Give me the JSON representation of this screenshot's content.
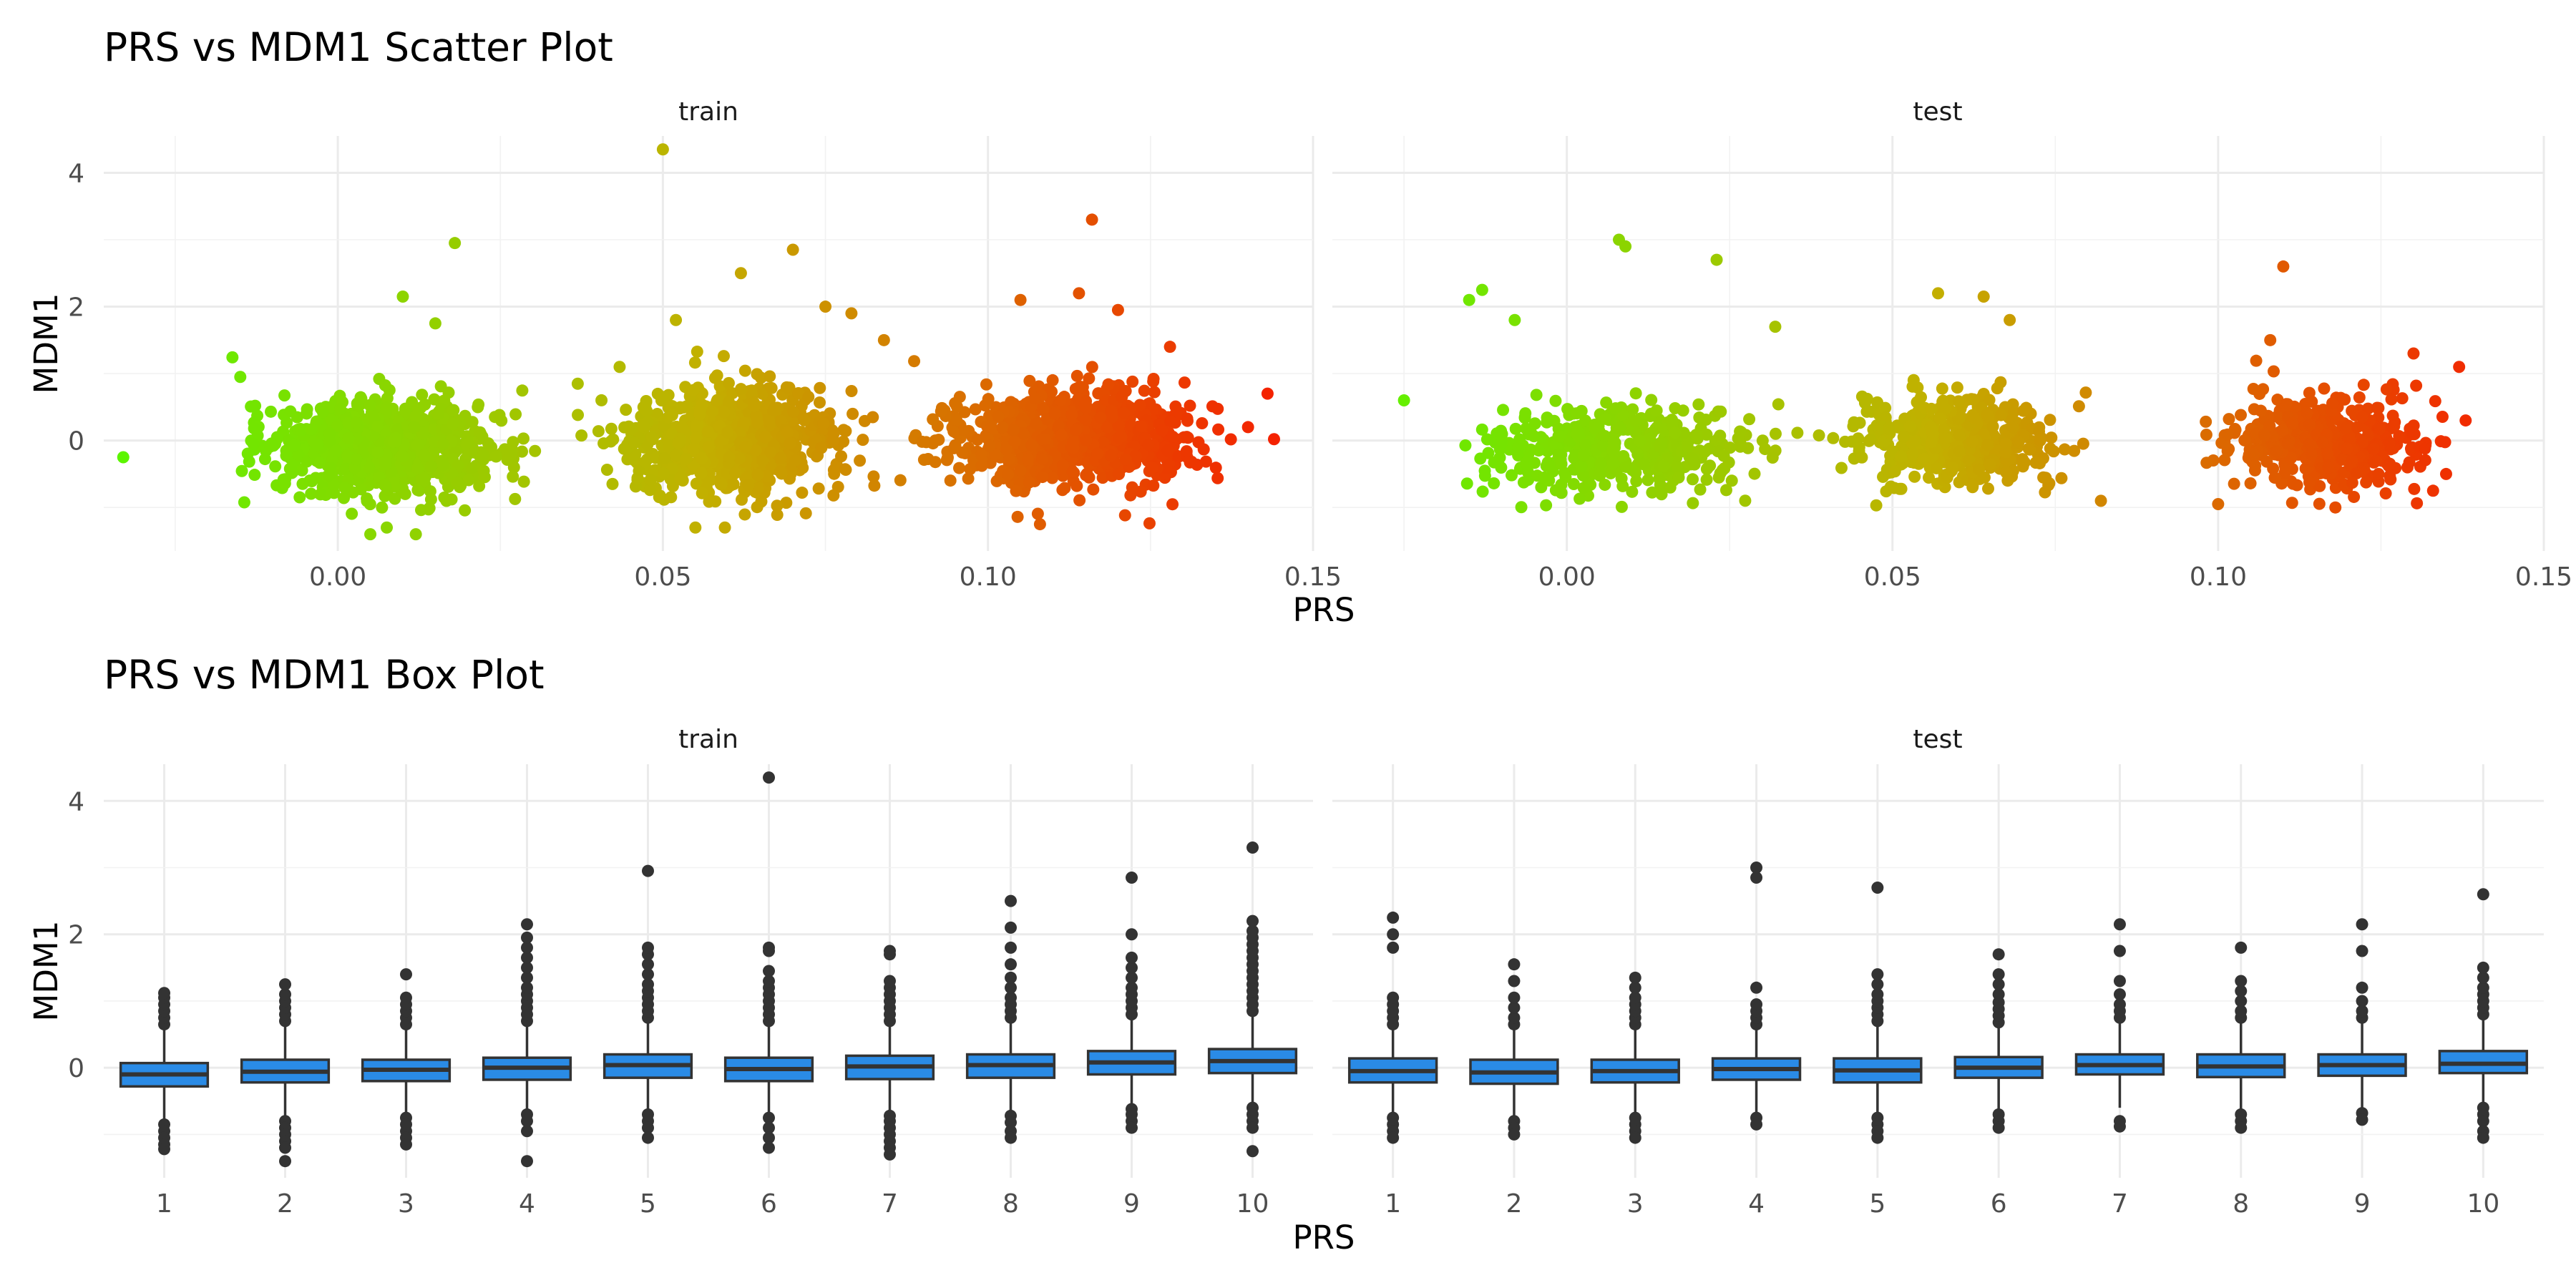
{
  "chart_data": [
    {
      "type": "scatter",
      "title": "PRS vs MDM1 Scatter Plot",
      "xlabel": "PRS",
      "ylabel": "MDM1",
      "xlim": [
        -0.036,
        0.15
      ],
      "ylim": [
        -1.65,
        4.55
      ],
      "x_ticks": [
        0.0,
        0.05,
        0.1,
        0.15
      ],
      "x_tick_labels": [
        "0.00",
        "0.05",
        "0.10",
        "0.15"
      ],
      "y_ticks": [
        0,
        2,
        4
      ],
      "y_tick_labels": [
        "0",
        "2",
        "4"
      ],
      "grid": true,
      "color_scale": {
        "low": "#5CF500",
        "mid": "#C2B000",
        "high": "#F52000",
        "x_min": -0.033,
        "x_max": 0.145
      },
      "panels": [
        {
          "name": "train",
          "clusters": [
            {
              "x_min": -0.02,
              "x_max": 0.035,
              "y_mean": -0.1,
              "y_sd": 0.36
            },
            {
              "x_min": 0.035,
              "x_max": 0.085,
              "y_mean": 0.0,
              "y_sd": 0.4
            },
            {
              "x_min": 0.085,
              "x_max": 0.14,
              "y_mean": 0.05,
              "y_sd": 0.36
            }
          ],
          "outliers": [
            [
              -0.033,
              -0.25
            ],
            [
              -0.015,
              0.95
            ],
            [
              0.01,
              2.15
            ],
            [
              0.015,
              1.75
            ],
            [
              0.018,
              2.95
            ],
            [
              0.005,
              -1.4
            ],
            [
              0.012,
              -1.4
            ],
            [
              0.05,
              4.35
            ],
            [
              0.052,
              1.8
            ],
            [
              0.062,
              2.5
            ],
            [
              0.07,
              2.85
            ],
            [
              0.075,
              2.0
            ],
            [
              0.079,
              1.9
            ],
            [
              0.084,
              1.5
            ],
            [
              0.055,
              -1.3
            ],
            [
              0.108,
              -1.25
            ],
            [
              0.116,
              3.3
            ],
            [
              0.114,
              2.2
            ],
            [
              0.12,
              1.95
            ],
            [
              0.105,
              2.1
            ],
            [
              0.143,
              0.7
            ],
            [
              0.144,
              0.02
            ],
            [
              0.14,
              0.2
            ],
            [
              0.128,
              1.4
            ]
          ]
        },
        {
          "name": "test",
          "clusters": [
            {
              "x_min": -0.02,
              "x_max": 0.037,
              "y_mean": -0.1,
              "y_sd": 0.32
            },
            {
              "x_min": 0.037,
              "x_max": 0.083,
              "y_mean": 0.0,
              "y_sd": 0.34
            },
            {
              "x_min": 0.095,
              "x_max": 0.138,
              "y_mean": 0.0,
              "y_sd": 0.33
            }
          ],
          "outliers": [
            [
              -0.025,
              0.6
            ],
            [
              -0.013,
              2.25
            ],
            [
              -0.015,
              2.1
            ],
            [
              -0.008,
              1.8
            ],
            [
              0.008,
              3.0
            ],
            [
              0.009,
              2.9
            ],
            [
              0.023,
              2.7
            ],
            [
              0.032,
              1.7
            ],
            [
              0.057,
              2.2
            ],
            [
              0.064,
              2.15
            ],
            [
              0.068,
              1.8
            ],
            [
              0.082,
              -0.9
            ],
            [
              0.11,
              2.6
            ],
            [
              0.108,
              1.5
            ],
            [
              0.13,
              1.3
            ],
            [
              0.137,
              1.1
            ],
            [
              0.138,
              0.3
            ],
            [
              0.135,
              -0.5
            ],
            [
              0.133,
              -0.75
            ],
            [
              0.1,
              -0.95
            ],
            [
              0.118,
              -1.0
            ]
          ]
        }
      ]
    },
    {
      "type": "box",
      "title": "PRS vs MDM1 Box Plot",
      "xlabel": "PRS",
      "ylabel": "MDM1",
      "categories": [
        "1",
        "2",
        "3",
        "4",
        "5",
        "6",
        "7",
        "8",
        "9",
        "10"
      ],
      "ylim": [
        -1.65,
        4.55
      ],
      "y_ticks": [
        0,
        2,
        4
      ],
      "y_tick_labels": [
        "0",
        "2",
        "4"
      ],
      "grid": true,
      "box_fill": "#2A8BE6",
      "panels": [
        {
          "name": "train",
          "boxes": [
            {
              "q1": -0.28,
              "median": -0.1,
              "q3": 0.07,
              "whisker_low": -0.8,
              "whisker_high": 0.58,
              "outliers": [
                -0.85,
                -0.95,
                -1.05,
                -1.15,
                -1.22,
                0.65,
                0.75,
                0.85,
                0.95,
                1.05,
                1.12
              ]
            },
            {
              "q1": -0.22,
              "median": -0.06,
              "q3": 0.12,
              "whisker_low": -0.75,
              "whisker_high": 0.62,
              "outliers": [
                -0.8,
                -0.9,
                -1.0,
                -1.1,
                -1.2,
                -1.4,
                0.7,
                0.8,
                0.9,
                1.0,
                1.1,
                1.25
              ]
            },
            {
              "q1": -0.2,
              "median": -0.03,
              "q3": 0.12,
              "whisker_low": -0.7,
              "whisker_high": 0.6,
              "outliers": [
                -0.75,
                -0.85,
                -0.95,
                -1.05,
                -1.15,
                0.65,
                0.75,
                0.85,
                0.95,
                1.05,
                1.4
              ]
            },
            {
              "q1": -0.18,
              "median": 0.0,
              "q3": 0.15,
              "whisker_low": -0.65,
              "whisker_high": 0.65,
              "outliers": [
                -0.7,
                -0.8,
                -0.95,
                -1.4,
                0.7,
                0.8,
                0.9,
                1.0,
                1.1,
                1.2,
                1.35,
                1.5,
                1.65,
                1.8,
                1.95,
                2.15
              ]
            },
            {
              "q1": -0.15,
              "median": 0.04,
              "q3": 0.2,
              "whisker_low": -0.65,
              "whisker_high": 0.7,
              "outliers": [
                -0.7,
                -0.8,
                -0.9,
                -1.05,
                0.75,
                0.85,
                0.95,
                1.05,
                1.15,
                1.25,
                1.4,
                1.55,
                1.7,
                1.8,
                2.95
              ]
            },
            {
              "q1": -0.2,
              "median": -0.02,
              "q3": 0.15,
              "whisker_low": -0.7,
              "whisker_high": 0.65,
              "outliers": [
                -0.75,
                -0.9,
                -1.05,
                -1.2,
                0.7,
                0.8,
                0.9,
                1.0,
                1.1,
                1.2,
                1.3,
                1.45,
                1.75,
                1.8,
                4.35
              ]
            },
            {
              "q1": -0.17,
              "median": 0.02,
              "q3": 0.18,
              "whisker_low": -0.68,
              "whisker_high": 0.65,
              "outliers": [
                -0.72,
                -0.8,
                -0.9,
                -1.0,
                -1.1,
                -1.2,
                -1.3,
                0.7,
                0.8,
                0.9,
                1.0,
                1.1,
                1.2,
                1.3,
                1.7,
                1.75
              ]
            },
            {
              "q1": -0.15,
              "median": 0.04,
              "q3": 0.2,
              "whisker_low": -0.65,
              "whisker_high": 0.7,
              "outliers": [
                -0.72,
                -0.82,
                -0.95,
                -1.05,
                0.75,
                0.85,
                0.95,
                1.05,
                1.2,
                1.35,
                1.55,
                1.8,
                2.1,
                2.5
              ]
            },
            {
              "q1": -0.1,
              "median": 0.08,
              "q3": 0.25,
              "whisker_low": -0.6,
              "whisker_high": 0.75,
              "outliers": [
                -0.62,
                -0.7,
                -0.8,
                -0.9,
                0.8,
                0.9,
                1.0,
                1.1,
                1.2,
                1.35,
                1.5,
                1.65,
                2.0,
                2.85
              ]
            },
            {
              "q1": -0.08,
              "median": 0.1,
              "q3": 0.28,
              "whisker_low": -0.55,
              "whisker_high": 0.8,
              "outliers": [
                -0.6,
                -0.7,
                -0.8,
                -0.9,
                -1.25,
                0.85,
                0.95,
                1.05,
                1.15,
                1.25,
                1.35,
                1.45,
                1.55,
                1.65,
                1.75,
                1.85,
                1.95,
                2.05,
                2.2,
                3.3
              ]
            }
          ]
        },
        {
          "name": "test",
          "boxes": [
            {
              "q1": -0.22,
              "median": -0.05,
              "q3": 0.14,
              "whisker_low": -0.7,
              "whisker_high": 0.6,
              "outliers": [
                -0.75,
                -0.85,
                -0.95,
                -1.05,
                0.65,
                0.75,
                0.85,
                0.95,
                1.05,
                1.8,
                2.0,
                2.25
              ]
            },
            {
              "q1": -0.24,
              "median": -0.07,
              "q3": 0.12,
              "whisker_low": -0.72,
              "whisker_high": 0.58,
              "outliers": [
                -0.8,
                -0.9,
                -1.0,
                0.65,
                0.75,
                0.9,
                1.05,
                1.3,
                1.55
              ]
            },
            {
              "q1": -0.22,
              "median": -0.05,
              "q3": 0.12,
              "whisker_low": -0.7,
              "whisker_high": 0.6,
              "outliers": [
                -0.75,
                -0.85,
                -0.95,
                -1.05,
                0.65,
                0.75,
                0.85,
                0.95,
                1.05,
                1.2,
                1.35
              ]
            },
            {
              "q1": -0.18,
              "median": -0.02,
              "q3": 0.14,
              "whisker_low": -0.68,
              "whisker_high": 0.6,
              "outliers": [
                -0.75,
                -0.85,
                0.65,
                0.75,
                0.85,
                0.95,
                1.2,
                2.85,
                3.0
              ]
            },
            {
              "q1": -0.22,
              "median": -0.04,
              "q3": 0.14,
              "whisker_low": -0.7,
              "whisker_high": 0.62,
              "outliers": [
                -0.75,
                -0.85,
                -0.95,
                -1.05,
                0.7,
                0.8,
                0.9,
                1.0,
                1.1,
                1.25,
                1.4,
                2.7
              ]
            },
            {
              "q1": -0.15,
              "median": 0.0,
              "q3": 0.16,
              "whisker_low": -0.65,
              "whisker_high": 0.62,
              "outliers": [
                -0.7,
                -0.8,
                -0.9,
                0.68,
                0.78,
                0.88,
                0.98,
                1.1,
                1.25,
                1.4,
                1.7
              ]
            },
            {
              "q1": -0.1,
              "median": 0.04,
              "q3": 0.2,
              "whisker_low": -0.6,
              "whisker_high": 0.68,
              "outliers": [
                -0.8,
                -0.88,
                0.75,
                0.85,
                0.95,
                1.1,
                1.3,
                1.75,
                2.15
              ]
            },
            {
              "q1": -0.14,
              "median": 0.02,
              "q3": 0.2,
              "whisker_low": -0.62,
              "whisker_high": 0.68,
              "outliers": [
                -0.7,
                -0.8,
                -0.9,
                0.75,
                0.85,
                1.0,
                1.15,
                1.3,
                1.8
              ]
            },
            {
              "q1": -0.12,
              "median": 0.04,
              "q3": 0.2,
              "whisker_low": -0.6,
              "whisker_high": 0.68,
              "outliers": [
                -0.68,
                -0.78,
                0.75,
                0.85,
                1.0,
                1.2,
                1.75,
                2.15
              ]
            },
            {
              "q1": -0.08,
              "median": 0.06,
              "q3": 0.25,
              "whisker_low": -0.55,
              "whisker_high": 0.72,
              "outliers": [
                -0.6,
                -0.7,
                -0.8,
                -0.95,
                -1.05,
                0.8,
                0.9,
                1.0,
                1.1,
                1.2,
                1.35,
                1.5,
                2.6
              ]
            }
          ]
        }
      ]
    }
  ]
}
